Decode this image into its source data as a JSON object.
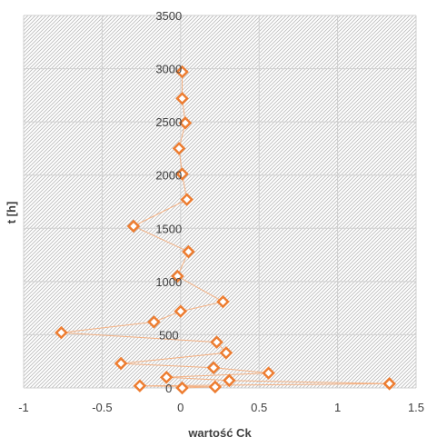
{
  "chart_data": {
    "type": "scatter",
    "title": "",
    "xlabel": "wartość Ck",
    "ylabel": "t [h]",
    "xlim": [
      -1,
      1.5
    ],
    "ylim": [
      0,
      3500
    ],
    "xticks": [
      -1,
      -0.5,
      0,
      0.5,
      1,
      1.5
    ],
    "xtick_labels": [
      "-1",
      "-0.5",
      "0",
      "0.5",
      "1",
      "1.5"
    ],
    "yticks": [
      0,
      500,
      1000,
      1500,
      2000,
      2500,
      3000,
      3500
    ],
    "ytick_labels": [
      "0",
      "500",
      "1000",
      "1500",
      "2000",
      "2500",
      "3000",
      "3500"
    ],
    "grid": true,
    "plot_background": "hatched",
    "connected": true,
    "marker": "diamond",
    "colors": {
      "marker": "#ED7D31",
      "line": "#F4B183",
      "grid": "#d0d0d0",
      "hatch": "#b8b8b8",
      "text": "#404040"
    },
    "series": [
      {
        "points": [
          {
            "x": 0.01,
            "y": 2970
          },
          {
            "x": 0.01,
            "y": 2720
          },
          {
            "x": 0.03,
            "y": 2490
          },
          {
            "x": -0.01,
            "y": 2250
          },
          {
            "x": 0.01,
            "y": 2010
          },
          {
            "x": 0.04,
            "y": 1770
          },
          {
            "x": -0.3,
            "y": 1520
          },
          {
            "x": 0.05,
            "y": 1280
          },
          {
            "x": -0.02,
            "y": 1050
          },
          {
            "x": 0.27,
            "y": 810
          },
          {
            "x": 0.0,
            "y": 720
          },
          {
            "x": -0.17,
            "y": 620
          },
          {
            "x": -0.76,
            "y": 520
          },
          {
            "x": 0.23,
            "y": 430
          },
          {
            "x": 0.29,
            "y": 330
          },
          {
            "x": -0.38,
            "y": 230
          },
          {
            "x": 0.21,
            "y": 190
          },
          {
            "x": 0.56,
            "y": 140
          },
          {
            "x": -0.09,
            "y": 100
          },
          {
            "x": 0.31,
            "y": 70
          },
          {
            "x": 1.33,
            "y": 40
          },
          {
            "x": -0.26,
            "y": 20
          },
          {
            "x": 0.22,
            "y": 10
          },
          {
            "x": 0.01,
            "y": 0
          }
        ]
      }
    ]
  }
}
